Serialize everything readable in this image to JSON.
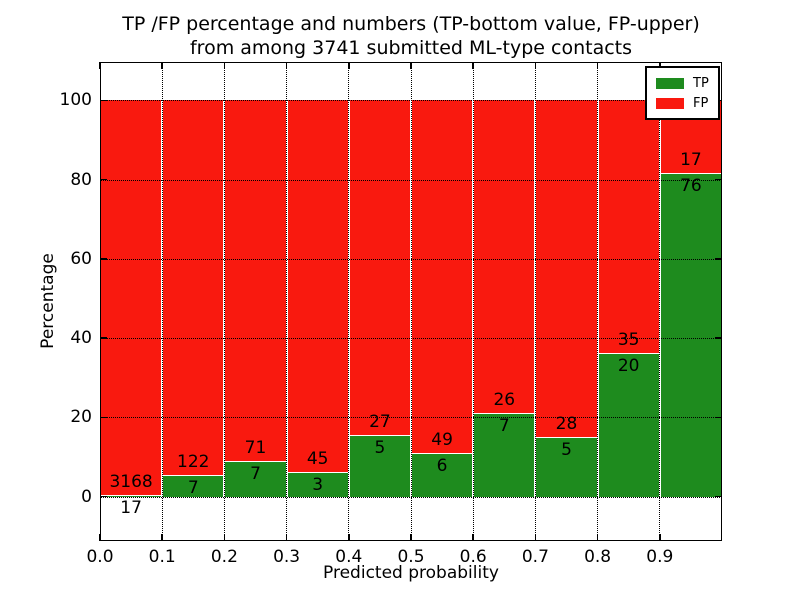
{
  "chart_data": {
    "type": "bar",
    "stacked": true,
    "title_line1": "TP /FP percentage and numbers (TP-bottom value, FP-upper)",
    "title_line2": "from among 3741 submitted ML-type contacts",
    "xlabel": "Predicted probability",
    "ylabel": "Percentage",
    "total_contacts": 3741,
    "xlim": [
      0.0,
      1.0
    ],
    "ylim_approx": [
      -11,
      110
    ],
    "grid": "dotted",
    "x_tick_labels": [
      "0.0",
      "0.1",
      "0.2",
      "0.3",
      "0.4",
      "0.5",
      "0.6",
      "0.7",
      "0.8",
      "0.9"
    ],
    "y_ticks": [
      0,
      20,
      40,
      60,
      80,
      100
    ],
    "bins": [
      "0.0-0.1",
      "0.1-0.2",
      "0.2-0.3",
      "0.3-0.4",
      "0.4-0.5",
      "0.5-0.6",
      "0.6-0.7",
      "0.7-0.8",
      "0.8-0.9",
      "0.9-1.0"
    ],
    "series": [
      {
        "name": "TP",
        "color": "#1e8b1e",
        "counts": [
          17,
          7,
          7,
          3,
          5,
          6,
          7,
          5,
          20,
          76
        ]
      },
      {
        "name": "FP",
        "color": "#f9190f",
        "counts": [
          3168,
          122,
          71,
          45,
          27,
          49,
          26,
          28,
          35,
          17
        ]
      }
    ],
    "tp_percent": [
      0.53,
      5.43,
      8.97,
      6.25,
      15.63,
      10.91,
      21.21,
      15.15,
      36.36,
      81.72
    ],
    "fp_percent": [
      99.47,
      94.57,
      91.03,
      93.75,
      84.37,
      89.09,
      78.79,
      84.85,
      63.64,
      18.28
    ],
    "legend": {
      "position": "upper right",
      "entries": [
        {
          "label": "TP",
          "color": "#1e8b1e"
        },
        {
          "label": "FP",
          "color": "#f9190f"
        }
      ]
    }
  }
}
